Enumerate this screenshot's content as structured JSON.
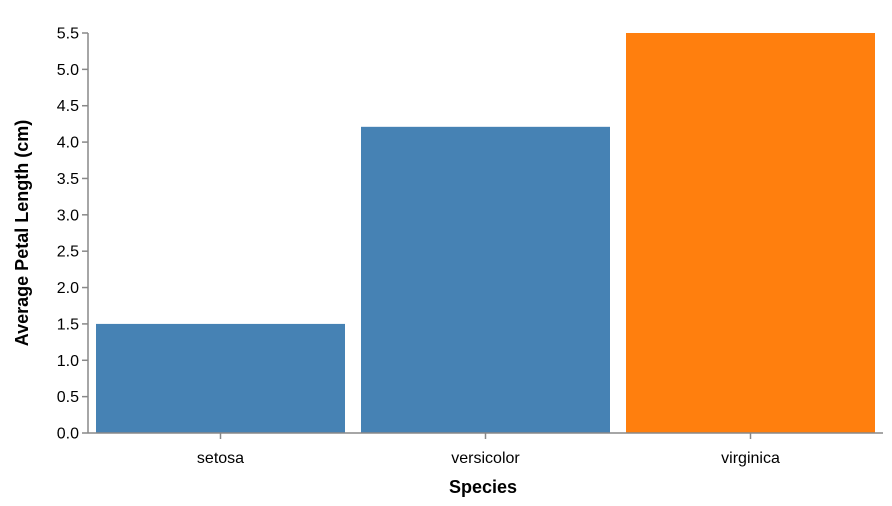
{
  "chart_data": {
    "type": "bar",
    "categories": [
      "setosa",
      "versicolor",
      "virginica"
    ],
    "values": [
      1.5,
      4.21,
      5.5
    ],
    "colors": [
      "#4682b4",
      "#4682b4",
      "#ff7f0e"
    ],
    "title": "",
    "xlabel": "Species",
    "ylabel": "Average Petal Length (cm)",
    "ylim": [
      0,
      5.5
    ],
    "yticks": [
      "0.0",
      "0.5",
      "1.0",
      "1.5",
      "2.0",
      "2.5",
      "3.0",
      "3.5",
      "4.0",
      "4.5",
      "5.0",
      "5.5"
    ],
    "grid": false,
    "legend": "none"
  }
}
